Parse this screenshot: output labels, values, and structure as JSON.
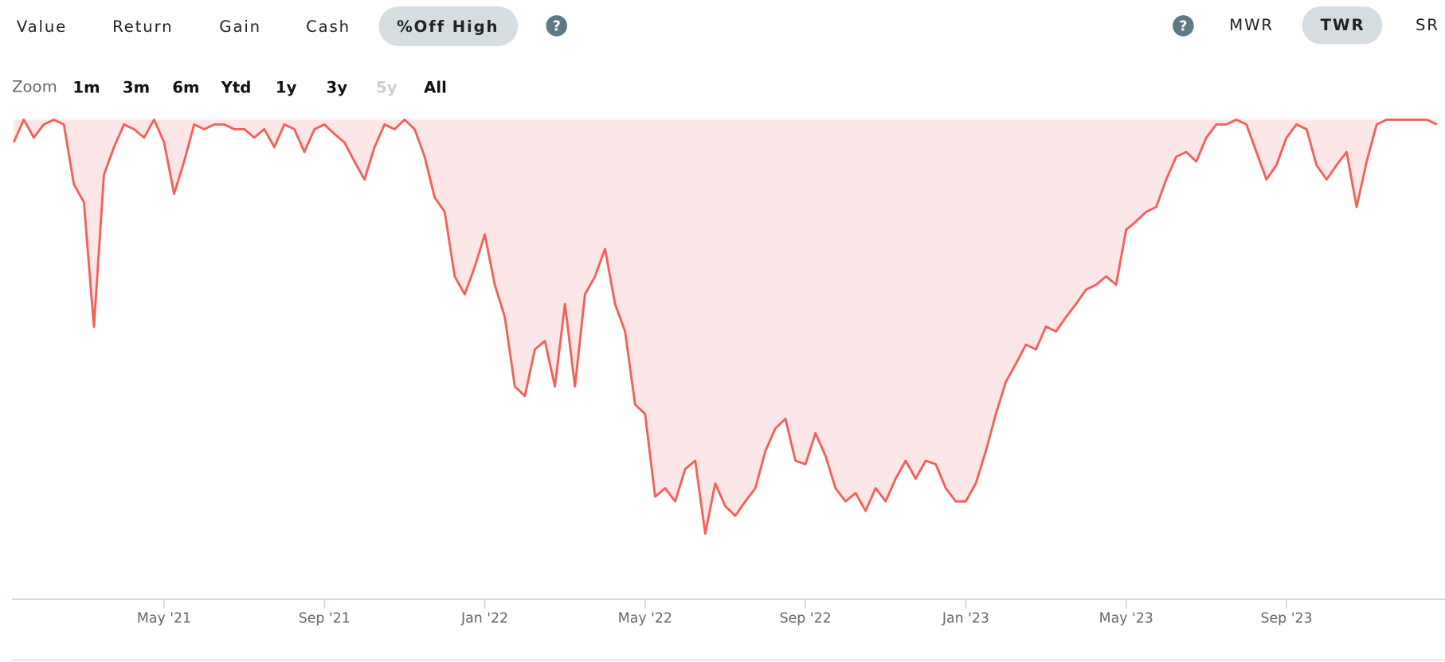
{
  "tabs": [
    "Value",
    "Return",
    "Gain",
    "Cash",
    "%Off High"
  ],
  "help_icon": "?",
  "methods": [
    "MWR",
    "TWR",
    "SR"
  ],
  "zoom": {
    "label": "Zoom",
    "options": [
      "1m",
      "3m",
      "6m",
      "Ytd",
      "1y",
      "3y",
      "5y",
      "All"
    ]
  },
  "chart_data": {
    "type": "area",
    "color": "#f0625c",
    "fill": "#fde6e7",
    "ylim": [
      -40,
      0
    ],
    "categories": [
      null,
      null,
      null,
      null,
      null,
      null,
      null,
      null,
      null,
      null,
      null,
      null,
      null,
      null,
      null,
      "May '21",
      null,
      null,
      null,
      null,
      null,
      null,
      null,
      null,
      null,
      null,
      null,
      null,
      null,
      null,
      null,
      "Sep '21",
      null,
      null,
      null,
      null,
      null,
      null,
      null,
      null,
      null,
      null,
      null,
      null,
      null,
      null,
      null,
      "Jan '22",
      null,
      null,
      null,
      null,
      null,
      null,
      null,
      null,
      null,
      null,
      null,
      null,
      null,
      null,
      null,
      "May '22",
      null,
      null,
      null,
      null,
      null,
      null,
      null,
      null,
      null,
      null,
      null,
      null,
      null,
      null,
      null,
      "Sep '22",
      null,
      null,
      null,
      null,
      null,
      null,
      null,
      null,
      null,
      null,
      null,
      null,
      null,
      null,
      null,
      "Jan '23",
      null,
      null,
      null,
      null,
      null,
      null,
      null,
      null,
      null,
      null,
      null,
      null,
      null,
      null,
      null,
      "May '23",
      null,
      null,
      null,
      null,
      null,
      null,
      null,
      null,
      null,
      null,
      null,
      null,
      null,
      null,
      null,
      "Sep '23",
      null,
      null,
      null,
      null,
      null,
      null,
      null,
      null,
      null,
      null,
      null,
      null,
      null,
      null,
      null
    ],
    "values": [
      -1.9,
      0,
      -1.5,
      -0.4,
      0,
      -0.4,
      -5.4,
      -6.9,
      -17.3,
      -4.6,
      -2.3,
      -0.4,
      -0.8,
      -1.5,
      0,
      -1.9,
      -6.2,
      -3.5,
      -0.4,
      -0.8,
      -0.4,
      -0.4,
      -0.8,
      -0.8,
      -1.5,
      -0.8,
      -2.3,
      -0.4,
      -0.8,
      -2.7,
      -0.8,
      -0.4,
      -1.2,
      -1.9,
      -3.5,
      -5.0,
      -2.3,
      -0.4,
      -0.8,
      0,
      -0.8,
      -3.1,
      -6.5,
      -7.7,
      -13.1,
      -14.6,
      -12.3,
      -9.6,
      -13.8,
      -16.5,
      -22.3,
      -23.1,
      -19.2,
      -18.5,
      -22.3,
      -15.4,
      -22.3,
      -14.6,
      -13.1,
      -10.8,
      -15.4,
      -17.7,
      -23.8,
      -24.6,
      -31.5,
      -30.8,
      -31.9,
      -29.2,
      -28.5,
      -34.6,
      -30.4,
      -32.3,
      -33.1,
      -31.9,
      -30.8,
      -27.7,
      -25.8,
      -25.0,
      -28.5,
      -28.8,
      -26.2,
      -28.1,
      -30.8,
      -31.9,
      -31.2,
      -32.7,
      -30.8,
      -31.9,
      -30.0,
      -28.5,
      -30.0,
      -28.5,
      -28.8,
      -30.8,
      -31.9,
      -31.9,
      -30.4,
      -27.7,
      -24.6,
      -21.9,
      -20.4,
      -18.8,
      -19.2,
      -17.3,
      -17.7,
      -16.5,
      -15.4,
      -14.2,
      -13.8,
      -13.1,
      -13.8,
      -9.2,
      -8.5,
      -7.7,
      -7.3,
      -5.0,
      -3.1,
      -2.7,
      -3.5,
      -1.5,
      -0.4,
      -0.4,
      0,
      -0.4,
      -2.7,
      -5.0,
      -3.8,
      -1.5,
      -0.4,
      -0.8,
      -3.8,
      -5.0,
      -3.8,
      -2.7,
      -7.3,
      -3.5,
      -0.4,
      0,
      0,
      0,
      0,
      0,
      -0.4
    ]
  }
}
